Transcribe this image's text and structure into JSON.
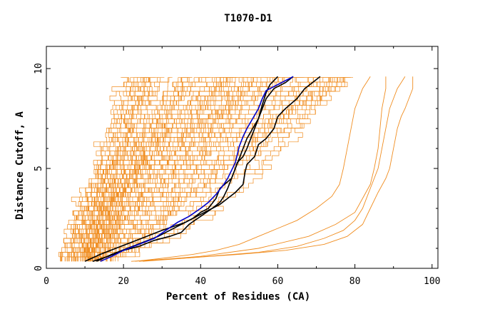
{
  "chart_data": {
    "type": "line",
    "title": "T1070-D1",
    "xlabel": "Percent of Residues (CA)",
    "ylabel": "Distance Cutoff, A",
    "xlim": [
      0,
      100
    ],
    "ylim": [
      0,
      10
    ],
    "x_ticks": [
      "0",
      "20",
      "40",
      "60",
      "80",
      "100"
    ],
    "y_ticks": [
      "0",
      "5",
      "10"
    ],
    "grid": false,
    "legend": "none",
    "colors": {
      "bulk": "#f08c1e",
      "highlight": "#0000cc",
      "reference": "#000000"
    },
    "series": [
      {
        "color": "#000000",
        "points": [
          [
            10,
            0.35
          ],
          [
            14,
            0.7
          ],
          [
            18,
            1.0
          ],
          [
            22,
            1.3
          ],
          [
            26,
            1.6
          ],
          [
            30,
            1.9
          ],
          [
            33,
            2.1
          ],
          [
            36,
            2.3
          ],
          [
            38,
            2.5
          ],
          [
            40,
            2.8
          ],
          [
            42,
            3.0
          ],
          [
            44,
            3.5
          ],
          [
            45,
            4.0
          ],
          [
            48,
            4.5
          ],
          [
            49,
            5.0
          ],
          [
            49.5,
            5.3
          ],
          [
            51,
            5.6
          ],
          [
            52,
            6.0
          ],
          [
            53,
            6.5
          ],
          [
            54,
            7.0
          ],
          [
            55,
            7.5
          ],
          [
            56,
            8.2
          ],
          [
            57,
            8.8
          ],
          [
            58,
            9.2
          ],
          [
            60,
            9.6
          ]
        ]
      },
      {
        "color": "#000000",
        "points": [
          [
            12,
            0.35
          ],
          [
            16,
            0.6
          ],
          [
            20,
            0.9
          ],
          [
            24,
            1.1
          ],
          [
            28,
            1.4
          ],
          [
            32,
            1.6
          ],
          [
            35,
            1.8
          ],
          [
            37,
            2.2
          ],
          [
            40,
            2.6
          ],
          [
            43,
            3.0
          ],
          [
            45,
            3.2
          ],
          [
            47,
            3.5
          ],
          [
            49,
            3.8
          ],
          [
            51,
            4.2
          ],
          [
            51.5,
            4.8
          ],
          [
            52,
            5.2
          ],
          [
            54,
            5.6
          ],
          [
            55,
            6.2
          ],
          [
            57,
            6.5
          ],
          [
            59,
            7.0
          ],
          [
            60,
            7.6
          ],
          [
            62,
            8.0
          ],
          [
            65,
            8.5
          ],
          [
            67,
            9.0
          ],
          [
            69,
            9.3
          ],
          [
            71,
            9.6
          ]
        ]
      },
      {
        "color": "#000000",
        "points": [
          [
            13,
            0.35
          ],
          [
            17,
            0.7
          ],
          [
            21,
            1.0
          ],
          [
            25,
            1.3
          ],
          [
            29,
            1.6
          ],
          [
            32,
            1.9
          ],
          [
            35,
            2.2
          ],
          [
            38,
            2.5
          ],
          [
            41,
            2.8
          ],
          [
            43,
            3.0
          ],
          [
            45,
            3.3
          ],
          [
            46,
            3.6
          ],
          [
            47,
            4.0
          ],
          [
            48,
            4.5
          ],
          [
            49,
            5.0
          ],
          [
            50,
            5.5
          ],
          [
            51,
            6.0
          ],
          [
            52,
            6.5
          ],
          [
            53.5,
            7.0
          ],
          [
            55,
            7.5
          ],
          [
            56,
            8.0
          ],
          [
            57,
            8.5
          ],
          [
            59,
            9.0
          ],
          [
            62,
            9.3
          ],
          [
            64,
            9.6
          ]
        ]
      },
      {
        "color": "#0000cc",
        "points": [
          [
            14,
            0.35
          ],
          [
            17,
            0.6
          ],
          [
            20,
            0.9
          ],
          [
            24,
            1.2
          ],
          [
            28,
            1.5
          ],
          [
            31,
            1.9
          ],
          [
            34,
            2.3
          ],
          [
            37,
            2.6
          ],
          [
            40,
            3.0
          ],
          [
            42,
            3.3
          ],
          [
            44,
            3.7
          ],
          [
            46,
            4.2
          ],
          [
            47,
            4.5
          ],
          [
            48,
            4.9
          ],
          [
            49,
            5.3
          ],
          [
            49.5,
            5.7
          ],
          [
            50,
            6.1
          ],
          [
            51,
            6.6
          ],
          [
            52,
            7.0
          ],
          [
            53.5,
            7.5
          ],
          [
            55,
            8.0
          ],
          [
            56,
            8.5
          ],
          [
            57,
            8.9
          ],
          [
            60,
            9.2
          ],
          [
            64,
            9.6
          ]
        ]
      },
      {
        "color": "#f08c1e",
        "points": [
          [
            23,
            0.35
          ],
          [
            30,
            0.5
          ],
          [
            38,
            0.7
          ],
          [
            44,
            0.9
          ],
          [
            50,
            1.2
          ],
          [
            55,
            1.6
          ],
          [
            60,
            2.0
          ],
          [
            65,
            2.4
          ],
          [
            70,
            3.0
          ],
          [
            74,
            3.6
          ],
          [
            76,
            4.2
          ],
          [
            77,
            5.0
          ],
          [
            78,
            6.0
          ],
          [
            79,
            7.0
          ],
          [
            80,
            8.0
          ],
          [
            81,
            8.5
          ],
          [
            82,
            9.0
          ],
          [
            83,
            9.3
          ],
          [
            84,
            9.6
          ]
        ]
      },
      {
        "color": "#f08c1e",
        "points": [
          [
            25,
            0.35
          ],
          [
            32,
            0.45
          ],
          [
            42,
            0.6
          ],
          [
            55,
            0.8
          ],
          [
            65,
            1.1
          ],
          [
            72,
            1.5
          ],
          [
            77,
            1.9
          ],
          [
            80,
            2.4
          ],
          [
            82,
            3.0
          ],
          [
            84,
            4.0
          ],
          [
            86,
            5.0
          ],
          [
            87,
            6.0
          ],
          [
            88,
            7.0
          ],
          [
            89,
            8.0
          ],
          [
            90,
            8.5
          ],
          [
            91,
            9.0
          ],
          [
            92,
            9.3
          ],
          [
            93,
            9.6
          ]
        ]
      },
      {
        "color": "#f08c1e",
        "points": [
          [
            22,
            0.35
          ],
          [
            35,
            0.5
          ],
          [
            50,
            0.7
          ],
          [
            62,
            0.9
          ],
          [
            72,
            1.2
          ],
          [
            78,
            1.6
          ],
          [
            82,
            2.2
          ],
          [
            84,
            3.0
          ],
          [
            86,
            3.8
          ],
          [
            88,
            4.5
          ],
          [
            89,
            5.0
          ],
          [
            90,
            6.0
          ],
          [
            91,
            7.0
          ],
          [
            92,
            7.6
          ],
          [
            93,
            8.0
          ],
          [
            94,
            8.5
          ],
          [
            95,
            9.0
          ],
          [
            95,
            9.6
          ]
        ]
      },
      {
        "color": "#f08c1e",
        "points": [
          [
            24,
            0.35
          ],
          [
            40,
            0.6
          ],
          [
            55,
            1.0
          ],
          [
            68,
            1.6
          ],
          [
            75,
            2.2
          ],
          [
            80,
            2.8
          ],
          [
            82,
            3.5
          ],
          [
            84,
            4.2
          ],
          [
            85,
            5.0
          ],
          [
            86,
            6.0
          ],
          [
            86.5,
            7.0
          ],
          [
            87,
            8.0
          ],
          [
            88,
            9.0
          ],
          [
            88,
            9.6
          ]
        ]
      }
    ],
    "bulk_series_count": 90
  }
}
